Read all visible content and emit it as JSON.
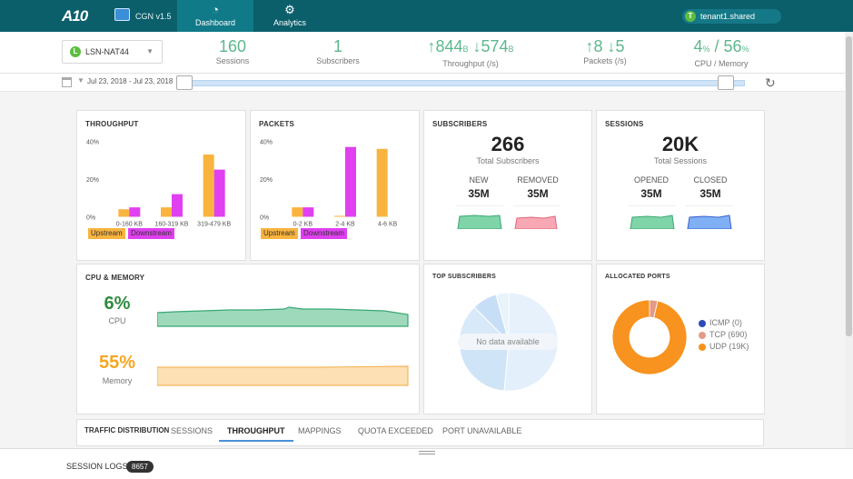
{
  "topbar": {
    "logo": "A10",
    "app_name": "CGN v1.5",
    "tabs": [
      {
        "label": "Dashboard",
        "icon": "dashboard-icon",
        "active": true
      },
      {
        "label": "Analytics",
        "icon": "analytics-icon",
        "active": false
      }
    ],
    "tenant": {
      "badge": "T",
      "name": "tenant1.shared"
    }
  },
  "summary": {
    "device": {
      "badge": "L",
      "name": "LSN-NAT44"
    },
    "sessions": {
      "value": "160",
      "label": "Sessions"
    },
    "subscribers": {
      "value": "1",
      "label": "Subscribers"
    },
    "throughput": {
      "up": "↑844",
      "up_unit": "B",
      "down": " ↓574",
      "down_unit": "B",
      "label": "Throughput (/s)"
    },
    "packets": {
      "up": "↑8",
      "down": " ↓5",
      "label": "Packets (/s)"
    },
    "cpu_memory": {
      "cpu": "4",
      "cpu_unit": "%",
      "sep": " / ",
      "mem": "56",
      "mem_unit": "%",
      "label": "CPU / Memory"
    }
  },
  "timebar": {
    "date_range": "Jul 23, 2018 - Jul 23, 2018"
  },
  "cards": {
    "throughput": {
      "title": "THROUGHPUT",
      "legend_up": "Upstream",
      "legend_down": "Downstream"
    },
    "packets": {
      "title": "PACKETS",
      "legend_up": "Upstream",
      "legend_down": "Downstream"
    },
    "subscribers": {
      "title": "SUBSCRIBERS",
      "total": "266",
      "total_label": "Total Subscribers",
      "new_label": "NEW",
      "new_value": "35M",
      "removed_label": "REMOVED",
      "removed_value": "35M"
    },
    "sessions": {
      "title": "SESSIONS",
      "total": "20K",
      "total_label": "Total Sessions",
      "opened_label": "OPENED",
      "opened_value": "35M",
      "closed_label": "CLOSED",
      "closed_value": "35M"
    },
    "cpu_memory": {
      "title": "CPU & MEMORY",
      "cpu_value": "6%",
      "cpu_label": "CPU",
      "mem_value": "55%",
      "mem_label": "Memory"
    },
    "top_subscribers": {
      "title": "TOP SUBSCRIBERS",
      "empty": "No data available"
    },
    "allocated_ports": {
      "title": "ALLOCATED PORTS",
      "legend": [
        {
          "label": "ICMP (0)",
          "color": "#2b4cb8"
        },
        {
          "label": "TCP (690)",
          "color": "#e49a86"
        },
        {
          "label": "UDP (19K)",
          "color": "#f7931e"
        }
      ]
    }
  },
  "chart_data": [
    {
      "type": "bar",
      "title": "THROUGHPUT",
      "categories": [
        "0-160 KB",
        "160-319 KB",
        "319-479 KB"
      ],
      "series": [
        {
          "name": "Upstream",
          "values": [
            4,
            5,
            33
          ],
          "color": "#f9b43f"
        },
        {
          "name": "Downstream",
          "values": [
            5,
            12,
            25
          ],
          "color": "#e040f0"
        }
      ],
      "ylim": [
        0,
        40
      ],
      "yticks": [
        "0%",
        "20%",
        "40%"
      ]
    },
    {
      "type": "bar",
      "title": "PACKETS",
      "categories": [
        "0-2 KB",
        "2-4 KB",
        "4-6 KB"
      ],
      "series": [
        {
          "name": "Upstream",
          "values": [
            5,
            0.5,
            36
          ],
          "color": "#f9b43f"
        },
        {
          "name": "Downstream",
          "values": [
            5,
            37,
            0
          ],
          "color": "#e040f0"
        }
      ],
      "ylim": [
        0,
        40
      ],
      "yticks": [
        "0%",
        "20%",
        "40%"
      ]
    },
    {
      "type": "pie",
      "title": "ALLOCATED PORTS",
      "categories": [
        "ICMP (0)",
        "TCP (690)",
        "UDP (19K)"
      ],
      "values": [
        0,
        690,
        19000
      ],
      "colors": [
        "#2b4cb8",
        "#e49a86",
        "#f7931e"
      ]
    }
  ],
  "tabs": {
    "label": "TRAFFIC DISTRIBUTION",
    "items": [
      "SESSIONS",
      "THROUGHPUT",
      "MAPPINGS",
      "QUOTA EXCEEDED",
      "PORT UNAVAILABLE"
    ],
    "active": "THROUGHPUT"
  },
  "logs": {
    "label": "SESSION LOGS",
    "count": "8657"
  }
}
